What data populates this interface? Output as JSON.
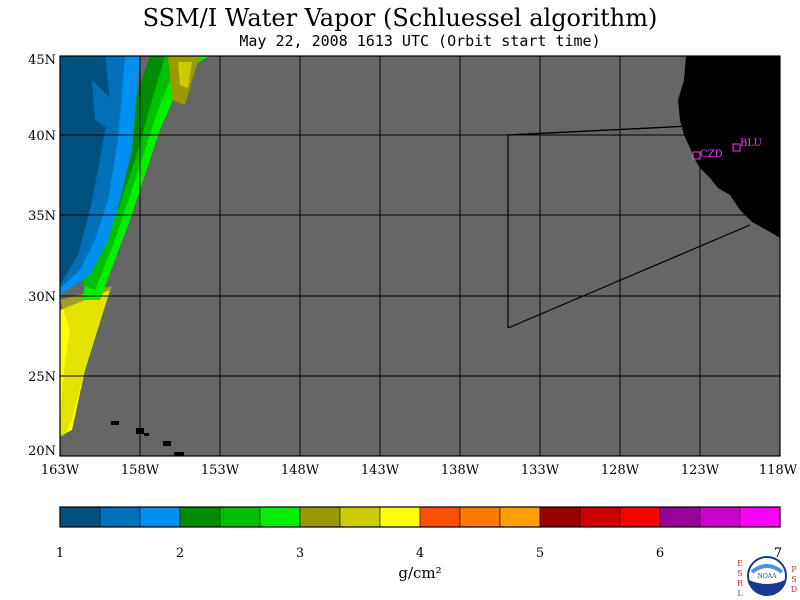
{
  "title": "SSM/I Water Vapor (Schluessel algorithm)",
  "subtitle": "May 22, 2008  1613 UTC  (Orbit start time)",
  "map": {
    "lat_labels": [
      "45N",
      "40N",
      "35N",
      "30N",
      "25N",
      "20N"
    ],
    "lon_labels": [
      "163W",
      "158W",
      "153W",
      "148W",
      "143W",
      "138W",
      "133W",
      "128W",
      "123W",
      "118W"
    ],
    "no_data_color": "#666666",
    "land_color": "#000000",
    "stations": [
      {
        "id": "CZD",
        "color": "#ff33ff"
      },
      {
        "id": "BLU",
        "color": "#ff33ff"
      }
    ]
  },
  "colorbar": {
    "unit": "g/cm²",
    "tick_labels": [
      "1",
      "2",
      "3",
      "4",
      "5",
      "6",
      "7"
    ],
    "colors": [
      "#005080",
      "#0070b8",
      "#0090f0",
      "#008c00",
      "#00c000",
      "#00f000",
      "#999900",
      "#cccc00",
      "#ffff00",
      "#ff5000",
      "#ff7800",
      "#ffa000",
      "#990000",
      "#cc0000",
      "#ff0000",
      "#990099",
      "#cc00cc",
      "#ff00ff"
    ]
  },
  "logo": {
    "left_letters": [
      "E",
      "S",
      "R",
      "L"
    ],
    "right_letters": [
      "P",
      "S",
      "D"
    ],
    "text": "NOAA"
  }
}
